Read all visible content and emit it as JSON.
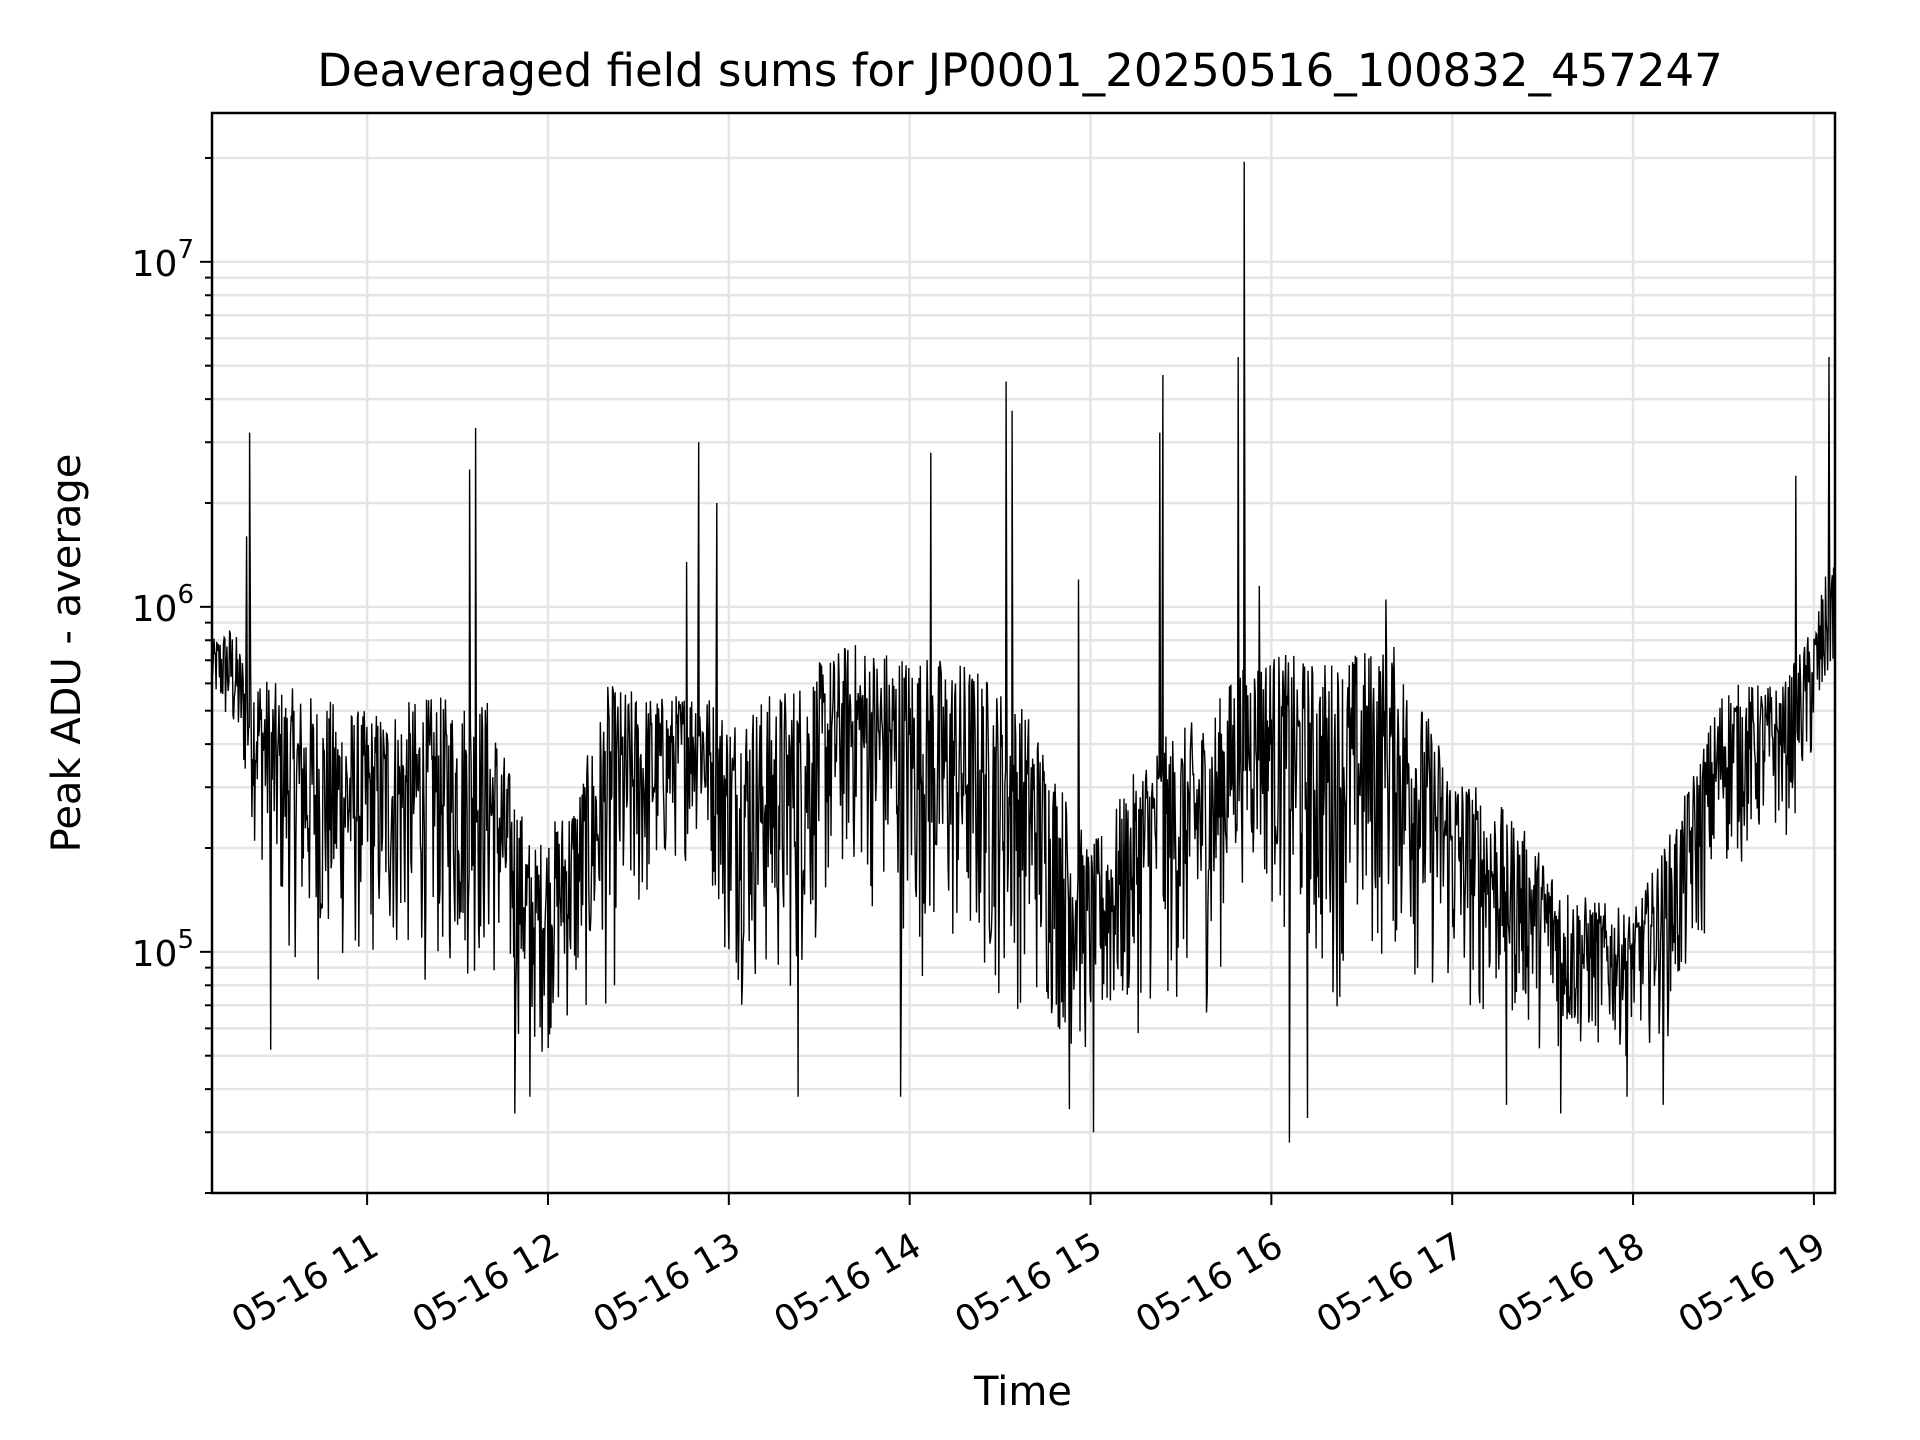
{
  "chart_data": {
    "type": "line",
    "title": "Deaveraged field sums for JP0001_20250516_100832_457247",
    "xlabel": "Time",
    "ylabel": "Peak ADU - average",
    "yscale": "log",
    "ylim": [
      20000,
      27000000
    ],
    "xlim": [
      "2025-05-16T10:08:32",
      "2025-05-16T19:07:00"
    ],
    "x_ticks": [
      {
        "label": "05-16 11",
        "value": "2025-05-16T11:00:00"
      },
      {
        "label": "05-16 12",
        "value": "2025-05-16T12:00:00"
      },
      {
        "label": "05-16 13",
        "value": "2025-05-16T13:00:00"
      },
      {
        "label": "05-16 14",
        "value": "2025-05-16T14:00:00"
      },
      {
        "label": "05-16 15",
        "value": "2025-05-16T15:00:00"
      },
      {
        "label": "05-16 16",
        "value": "2025-05-16T16:00:00"
      },
      {
        "label": "05-16 17",
        "value": "2025-05-16T17:00:00"
      },
      {
        "label": "05-16 18",
        "value": "2025-05-16T18:00:00"
      },
      {
        "label": "05-16 19",
        "value": "2025-05-16T19:00:00"
      }
    ],
    "y_ticks": [
      {
        "base": "10",
        "exp": "5",
        "value": 100000
      },
      {
        "base": "10",
        "exp": "6",
        "value": 1000000
      },
      {
        "base": "10",
        "exp": "7",
        "value": 10000000
      }
    ],
    "grid": true,
    "line_color": "#000000",
    "grid_color": "#e5e5e5",
    "series": [
      {
        "envelope": [
          {
            "x": "2025-05-16T10:08:32",
            "low": 500000,
            "high": 800000
          },
          {
            "x": "2025-05-16T10:15:00",
            "low": 350000,
            "high": 900000
          },
          {
            "x": "2025-05-16T10:20:00",
            "low": 250000,
            "high": 700000
          },
          {
            "x": "2025-05-16T10:30:00",
            "low": 100000,
            "high": 600000
          },
          {
            "x": "2025-05-16T10:45:00",
            "low": 70000,
            "high": 550000
          },
          {
            "x": "2025-05-16T11:00:00",
            "low": 80000,
            "high": 500000
          },
          {
            "x": "2025-05-16T11:20:00",
            "low": 75000,
            "high": 550000
          },
          {
            "x": "2025-05-16T11:40:00",
            "low": 70000,
            "high": 550000
          },
          {
            "x": "2025-05-16T11:55:00",
            "low": 45000,
            "high": 200000
          },
          {
            "x": "2025-05-16T12:10:00",
            "low": 55000,
            "high": 300000
          },
          {
            "x": "2025-05-16T12:20:00",
            "low": 60000,
            "high": 600000
          },
          {
            "x": "2025-05-16T12:40:00",
            "low": 150000,
            "high": 550000
          },
          {
            "x": "2025-05-16T12:50:00",
            "low": 200000,
            "high": 600000
          },
          {
            "x": "2025-05-16T13:00:00",
            "low": 70000,
            "high": 500000
          },
          {
            "x": "2025-05-16T13:20:00",
            "low": 60000,
            "high": 600000
          },
          {
            "x": "2025-05-16T13:40:00",
            "low": 150000,
            "high": 800000
          },
          {
            "x": "2025-05-16T14:00:00",
            "low": 80000,
            "high": 750000
          },
          {
            "x": "2025-05-16T14:20:00",
            "low": 70000,
            "high": 700000
          },
          {
            "x": "2025-05-16T14:40:00",
            "low": 60000,
            "high": 500000
          },
          {
            "x": "2025-05-16T15:00:00",
            "low": 40000,
            "high": 200000
          },
          {
            "x": "2025-05-16T15:20:00",
            "low": 60000,
            "high": 400000
          },
          {
            "x": "2025-05-16T15:40:00",
            "low": 60000,
            "high": 500000
          },
          {
            "x": "2025-05-16T15:50:00",
            "low": 150000,
            "high": 700000
          },
          {
            "x": "2025-05-16T16:00:00",
            "low": 120000,
            "high": 750000
          },
          {
            "x": "2025-05-16T16:15:00",
            "low": 60000,
            "high": 700000
          },
          {
            "x": "2025-05-16T16:40:00",
            "low": 80000,
            "high": 800000
          },
          {
            "x": "2025-05-16T17:00:00",
            "low": 60000,
            "high": 350000
          },
          {
            "x": "2025-05-16T17:20:00",
            "low": 55000,
            "high": 250000
          },
          {
            "x": "2025-05-16T17:40:00",
            "low": 45000,
            "high": 150000
          },
          {
            "x": "2025-05-16T18:00:00",
            "low": 50000,
            "high": 130000
          },
          {
            "x": "2025-05-16T18:15:00",
            "low": 55000,
            "high": 250000
          },
          {
            "x": "2025-05-16T18:30:00",
            "low": 150000,
            "high": 600000
          },
          {
            "x": "2025-05-16T18:50:00",
            "low": 200000,
            "high": 600000
          },
          {
            "x": "2025-05-16T19:00:00",
            "low": 300000,
            "high": 900000
          },
          {
            "x": "2025-05-16T19:07:00",
            "low": 600000,
            "high": 1600000
          }
        ],
        "spikes": [
          {
            "x": "2025-05-16T10:21:00",
            "y": 3200000
          },
          {
            "x": "2025-05-16T10:20:00",
            "y": 1600000
          },
          {
            "x": "2025-05-16T11:34:00",
            "y": 2500000
          },
          {
            "x": "2025-05-16T11:36:00",
            "y": 3300000
          },
          {
            "x": "2025-05-16T12:46:00",
            "y": 1350000
          },
          {
            "x": "2025-05-16T12:50:00",
            "y": 3000000
          },
          {
            "x": "2025-05-16T12:56:00",
            "y": 2000000
          },
          {
            "x": "2025-05-16T14:07:00",
            "y": 2800000
          },
          {
            "x": "2025-05-16T14:32:00",
            "y": 4500000
          },
          {
            "x": "2025-05-16T14:34:00",
            "y": 3700000
          },
          {
            "x": "2025-05-16T14:56:00",
            "y": 1200000
          },
          {
            "x": "2025-05-16T15:23:00",
            "y": 3200000
          },
          {
            "x": "2025-05-16T15:24:00",
            "y": 4700000
          },
          {
            "x": "2025-05-16T15:49:00",
            "y": 5300000
          },
          {
            "x": "2025-05-16T15:51:00",
            "y": 19500000
          },
          {
            "x": "2025-05-16T15:56:00",
            "y": 1150000
          },
          {
            "x": "2025-05-16T16:38:00",
            "y": 1050000
          },
          {
            "x": "2025-05-16T18:54:00",
            "y": 2400000
          },
          {
            "x": "2025-05-16T19:05:00",
            "y": 5300000
          }
        ],
        "dips": [
          {
            "x": "2025-05-16T10:28:00",
            "y": 52000
          },
          {
            "x": "2025-05-16T11:49:00",
            "y": 34000
          },
          {
            "x": "2025-05-16T11:54:00",
            "y": 38000
          },
          {
            "x": "2025-05-16T13:23:00",
            "y": 38000
          },
          {
            "x": "2025-05-16T13:57:00",
            "y": 38000
          },
          {
            "x": "2025-05-16T14:53:00",
            "y": 35000
          },
          {
            "x": "2025-05-16T15:01:00",
            "y": 30000
          },
          {
            "x": "2025-05-16T16:06:00",
            "y": 28000
          },
          {
            "x": "2025-05-16T16:12:00",
            "y": 33000
          },
          {
            "x": "2025-05-16T17:18:00",
            "y": 36000
          },
          {
            "x": "2025-05-16T17:36:00",
            "y": 34000
          },
          {
            "x": "2025-05-16T17:58:00",
            "y": 38000
          },
          {
            "x": "2025-05-16T18:10:00",
            "y": 36000
          }
        ]
      }
    ]
  }
}
